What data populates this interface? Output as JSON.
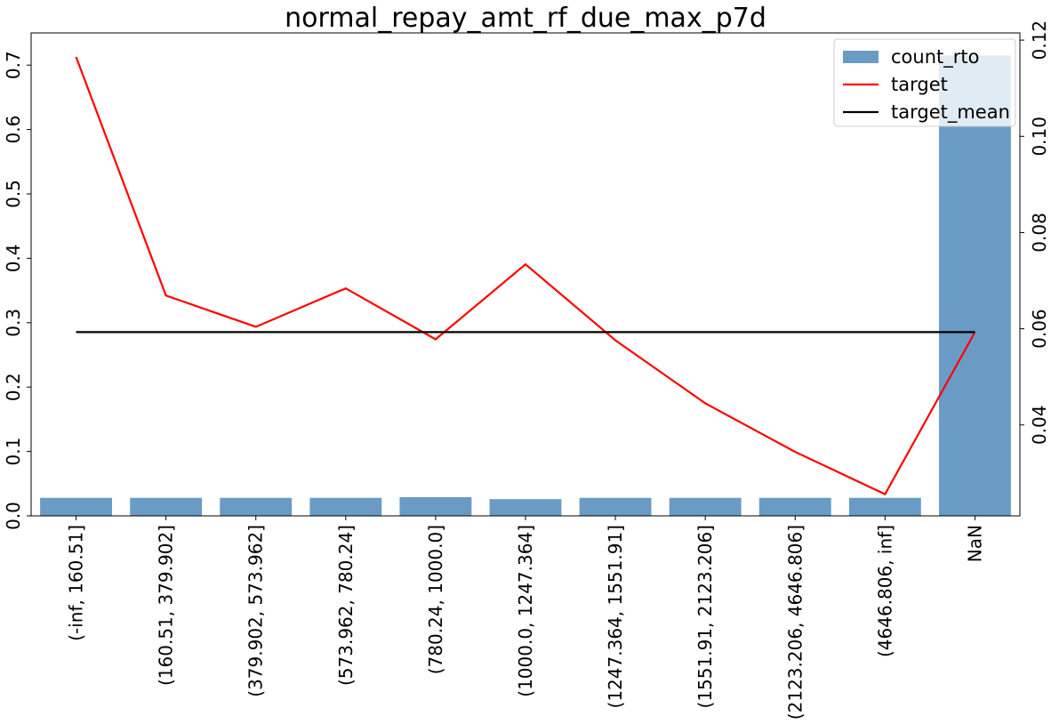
{
  "chart_data": {
    "type": "bar",
    "title": "normal_repay_amt_rf_due_max_p7d",
    "categories": [
      "(-inf, 160.51]",
      "(160.51, 379.902]",
      "(379.902, 573.962]",
      "(573.962, 780.24]",
      "(780.24, 1000.0]",
      "(1000.0, 1247.364]",
      "(1247.364, 1551.91]",
      "(1551.91, 2123.206]",
      "(2123.206, 4646.806]",
      "(4646.806, inf]",
      "NaN"
    ],
    "series": [
      {
        "name": "count_rto",
        "type": "bar",
        "axis": "left",
        "color": "#6a9bc5",
        "values": [
          0.028,
          0.028,
          0.028,
          0.028,
          0.029,
          0.026,
          0.028,
          0.028,
          0.028,
          0.028,
          0.715
        ]
      },
      {
        "name": "target",
        "type": "line",
        "axis": "right",
        "color": "#ff0000",
        "values": [
          0.1165,
          0.0669,
          0.0604,
          0.0684,
          0.0578,
          0.0734,
          0.0576,
          0.0445,
          0.0344,
          0.0256,
          0.0593
        ]
      },
      {
        "name": "target_mean",
        "type": "line",
        "axis": "right",
        "color": "#000000",
        "values": [
          0.0593,
          0.0593,
          0.0593,
          0.0593,
          0.0593,
          0.0593,
          0.0593,
          0.0593,
          0.0593,
          0.0593,
          0.0593
        ]
      }
    ],
    "y_left": {
      "lim": [
        0,
        0.75
      ],
      "ticks": [
        0,
        0.1,
        0.2,
        0.3,
        0.4,
        0.5,
        0.6,
        0.7
      ],
      "tick_labels": [
        "0.0",
        "0.1",
        "0.2",
        "0.3",
        "0.4",
        "0.5",
        "0.6",
        "0.7"
      ]
    },
    "y_right": {
      "lim": [
        0.0211,
        0.1215
      ],
      "ticks": [
        0.04,
        0.06,
        0.08,
        0.1,
        0.12
      ],
      "tick_labels": [
        "0.04",
        "0.06",
        "0.08",
        "0.10",
        "0.12"
      ]
    },
    "legend": {
      "placement": "top-right",
      "entries": [
        "count_rto",
        "target",
        "target_mean"
      ]
    },
    "grid": false
  }
}
